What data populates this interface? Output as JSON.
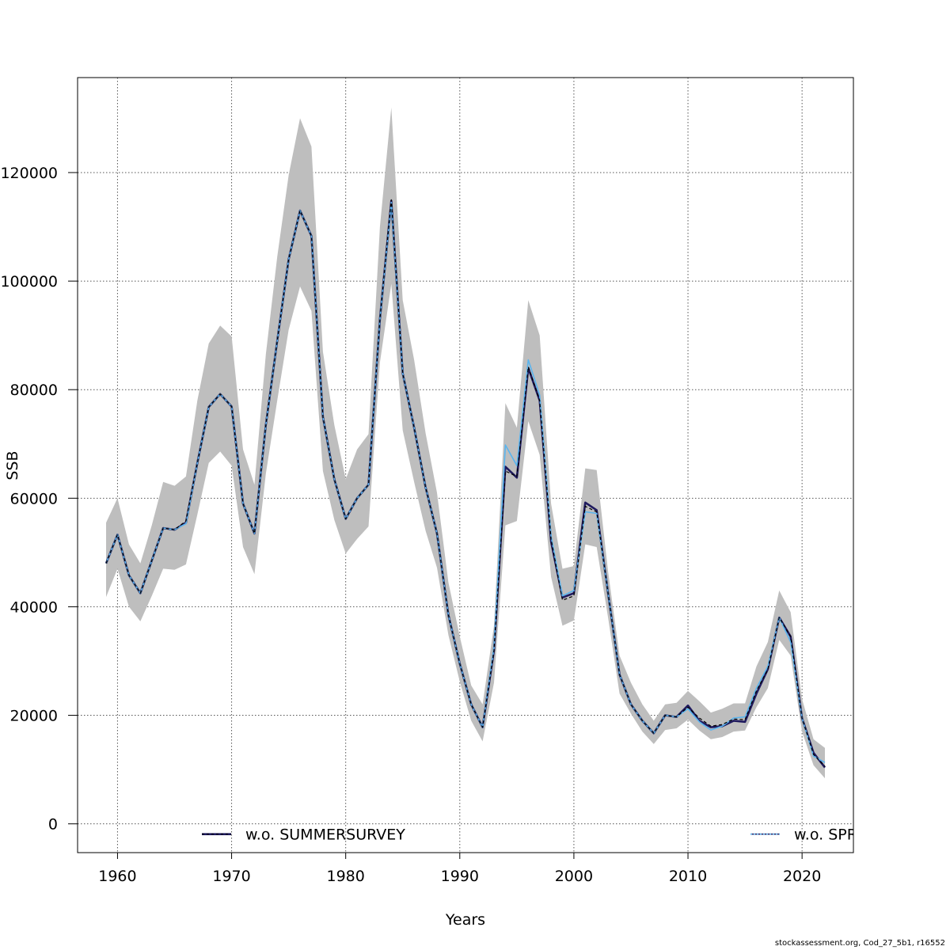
{
  "footer": "stockassessment.org, Cod_27_5b1, r16552",
  "chart_data": {
    "type": "line",
    "xlabel": "Years",
    "ylabel": "SSB",
    "xlim": [
      1956.5,
      2024.5
    ],
    "ylim": [
      -5300,
      137500
    ],
    "xticks": [
      1960,
      1970,
      1980,
      1990,
      2000,
      2010,
      2020
    ],
    "yticks": [
      0,
      20000,
      40000,
      60000,
      80000,
      100000,
      120000
    ],
    "ytick_labels": [
      "0",
      "20000",
      "40000",
      "60000",
      "80000",
      "100000",
      "120000"
    ],
    "grid": true,
    "x": [
      1959,
      1960,
      1961,
      1962,
      1963,
      1964,
      1965,
      1966,
      1967,
      1968,
      1969,
      1970,
      1971,
      1972,
      1973,
      1974,
      1975,
      1976,
      1977,
      1978,
      1979,
      1980,
      1981,
      1982,
      1983,
      1984,
      1985,
      1986,
      1987,
      1988,
      1989,
      1990,
      1991,
      1992,
      1993,
      1994,
      1995,
      1996,
      1997,
      1998,
      1999,
      2000,
      2001,
      2002,
      2003,
      2004,
      2005,
      2006,
      2007,
      2008,
      2009,
      2010,
      2011,
      2012,
      2013,
      2014,
      2015,
      2016,
      2017,
      2018,
      2019,
      2020,
      2021,
      2022
    ],
    "band": {
      "upper": [
        55500,
        60000,
        51500,
        48000,
        55000,
        63000,
        62300,
        64000,
        78000,
        88500,
        91800,
        89800,
        69000,
        62500,
        86500,
        104500,
        119500,
        130000,
        124800,
        87000,
        73500,
        63500,
        69000,
        71800,
        110000,
        132000,
        96500,
        85500,
        72000,
        61000,
        44500,
        34500,
        25500,
        22000,
        36500,
        77500,
        73000,
        96500,
        90000,
        59000,
        47000,
        47500,
        65500,
        65200,
        46500,
        31000,
        26000,
        22000,
        19000,
        22000,
        22300,
        24500,
        22600,
        20500,
        21200,
        22200,
        22200,
        29000,
        33500,
        43000,
        39000,
        23000,
        15600,
        14000
      ],
      "lower": [
        41800,
        47000,
        40000,
        37300,
        42000,
        47000,
        46800,
        47800,
        57000,
        66500,
        68600,
        66000,
        51000,
        46000,
        64500,
        78000,
        91000,
        99000,
        94500,
        65000,
        56000,
        49800,
        52500,
        54800,
        85000,
        99500,
        72500,
        63000,
        54000,
        47200,
        34800,
        26200,
        19000,
        15200,
        26000,
        55000,
        55800,
        74200,
        68000,
        45500,
        36500,
        37500,
        51500,
        51000,
        38000,
        24000,
        20300,
        17000,
        14700,
        17300,
        17600,
        19200,
        17200,
        15600,
        16000,
        17000,
        17200,
        21500,
        25000,
        33900,
        31000,
        17000,
        10800,
        8400
      ]
    },
    "series": [
      {
        "name": "w.o. SUMMERSURVEY",
        "color": "#1f1a5e",
        "values": [
          48000,
          53300,
          45800,
          42500,
          48500,
          54500,
          54200,
          55500,
          66500,
          76800,
          79200,
          76900,
          59000,
          53500,
          73500,
          89000,
          104000,
          113000,
          108300,
          75000,
          63500,
          56200,
          60000,
          62500,
          93000,
          114800,
          83000,
          73000,
          62000,
          53500,
          38500,
          29500,
          22000,
          17800,
          32000,
          65800,
          63800,
          84000,
          78000,
          52000,
          41700,
          42500,
          59200,
          57800,
          42500,
          27500,
          22000,
          19000,
          16700,
          20000,
          19700,
          21800,
          19000,
          17800,
          18000,
          19000,
          18800,
          24000,
          28500,
          38000,
          34500,
          19500,
          13100,
          10400
        ]
      },
      {
        "name": "w.o. SPRINGSURVEY",
        "color": "#5ab4ee",
        "values": [
          48000,
          53300,
          45800,
          42500,
          48500,
          54500,
          54200,
          55300,
          66500,
          76800,
          79200,
          76900,
          59000,
          53500,
          73500,
          89000,
          104000,
          113000,
          108300,
          75000,
          63500,
          56200,
          60000,
          62500,
          93000,
          114500,
          83000,
          73000,
          62000,
          53500,
          38500,
          29500,
          22000,
          17800,
          32500,
          69800,
          66000,
          85500,
          79000,
          53000,
          42000,
          43000,
          57500,
          57200,
          42500,
          27500,
          22000,
          19000,
          16700,
          20000,
          19700,
          21200,
          18800,
          17300,
          18000,
          19500,
          19700,
          25000,
          29000,
          38000,
          33500,
          19500,
          12500,
          11300
        ]
      },
      {
        "name": "",
        "color": "#000000",
        "dashed": true,
        "values": [
          48000,
          53300,
          45800,
          42500,
          48500,
          54500,
          54200,
          55800,
          66500,
          76800,
          79200,
          76900,
          59000,
          53500,
          73500,
          89000,
          104000,
          113000,
          108300,
          75000,
          63500,
          56200,
          60000,
          62500,
          93000,
          115000,
          83000,
          73000,
          62000,
          53500,
          38500,
          29500,
          22000,
          17800,
          32000,
          65000,
          64000,
          84200,
          78000,
          52500,
          41200,
          42000,
          58500,
          57500,
          42500,
          27500,
          22000,
          19000,
          16700,
          20000,
          19700,
          21500,
          19500,
          18000,
          18300,
          19300,
          19200,
          24500,
          28500,
          38000,
          34500,
          19500,
          12800,
          10600
        ]
      }
    ],
    "legend": {
      "placement": "bottom",
      "entries": [
        {
          "label": "w.o. SUMMERSURVEY",
          "color": "#1f1a5e",
          "style": "solid"
        },
        {
          "label": "w.o. SPRINGSURVEY",
          "color": "#5ab4ee",
          "style": "dotted"
        }
      ]
    }
  }
}
